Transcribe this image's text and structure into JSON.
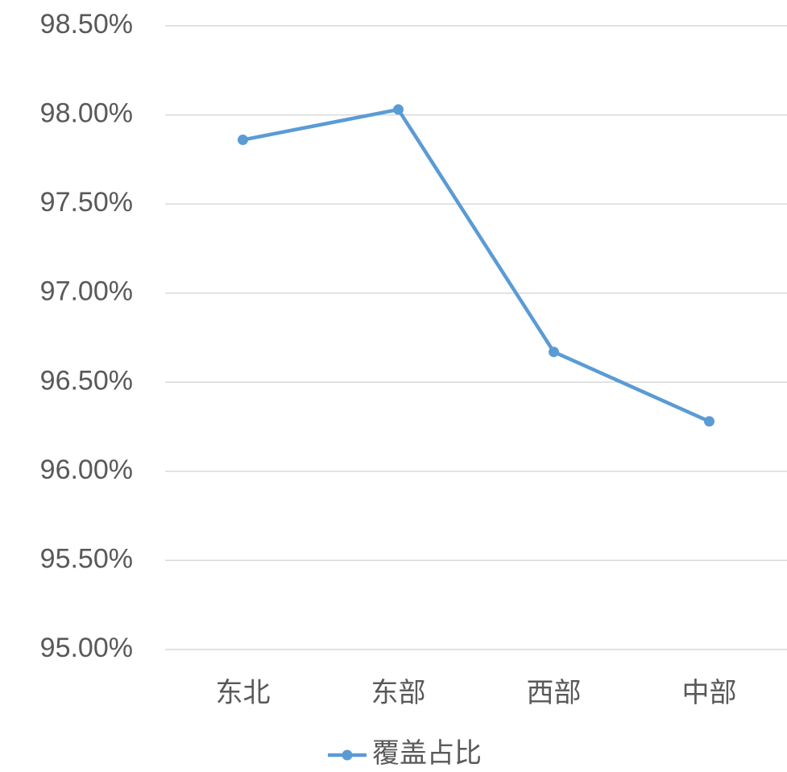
{
  "chart_data": {
    "type": "line",
    "categories": [
      "东北",
      "东部",
      "西部",
      "中部"
    ],
    "series": [
      {
        "name": "覆盖占比",
        "color": "#5b9bd5",
        "values": [
          97.86,
          98.03,
          96.67,
          96.28
        ]
      }
    ],
    "ylim": [
      95,
      98.5
    ],
    "yticks": [
      {
        "value": 95,
        "label": "95.00%"
      },
      {
        "value": 95.5,
        "label": "95.50%"
      },
      {
        "value": 96,
        "label": "96.00%"
      },
      {
        "value": 96.5,
        "label": "96.50%"
      },
      {
        "value": 97,
        "label": "97.00%"
      },
      {
        "value": 97.5,
        "label": "97.50%"
      },
      {
        "value": 98,
        "label": "98.00%"
      },
      {
        "value": 98.5,
        "label": "98.50%"
      }
    ],
    "grid": true,
    "legend": "bottom"
  }
}
